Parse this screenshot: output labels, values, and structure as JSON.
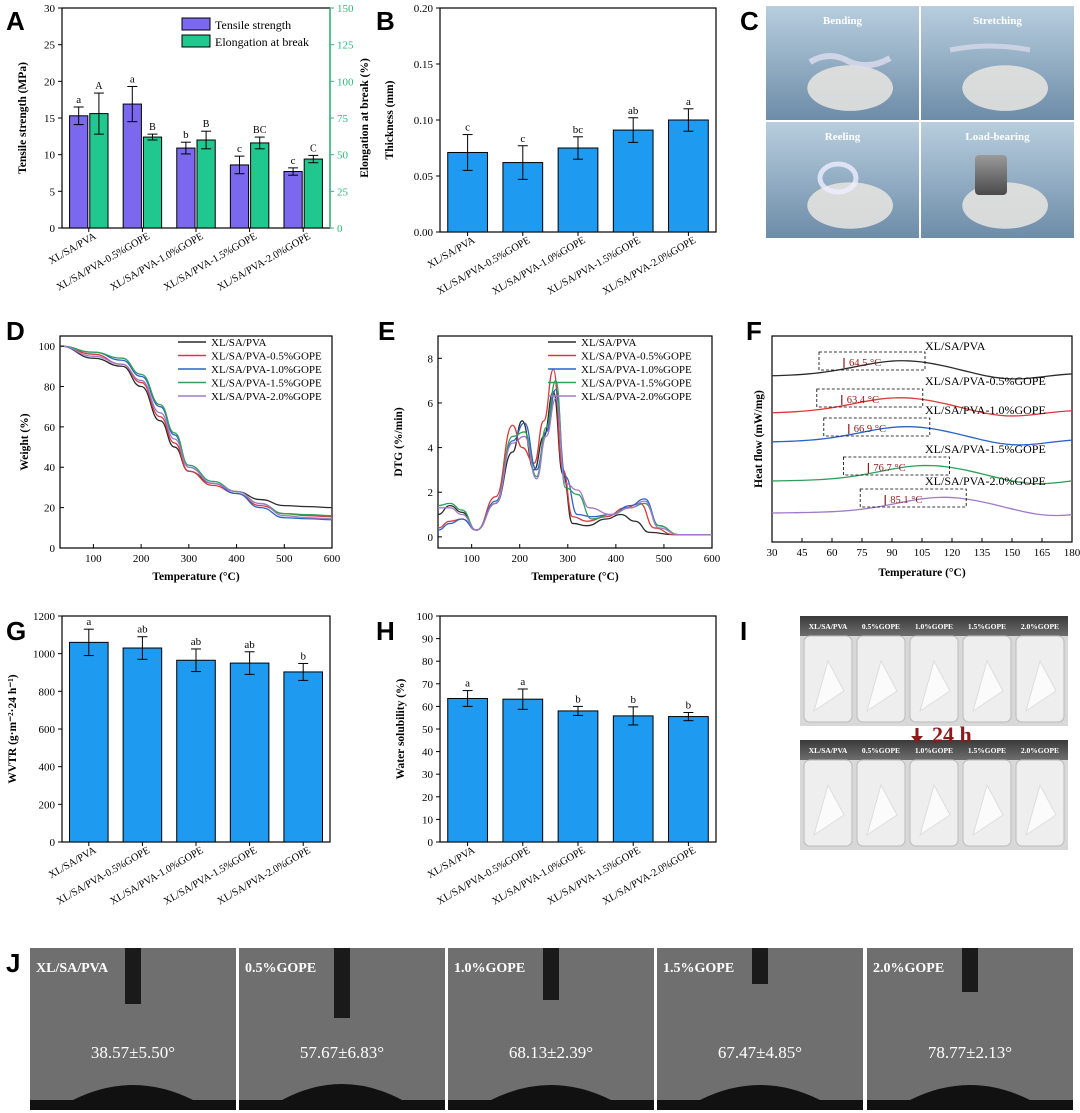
{
  "panels": {
    "A": "A",
    "B": "B",
    "C": "C",
    "D": "D",
    "E": "E",
    "F": "F",
    "G": "G",
    "H": "H",
    "I": "I",
    "J": "J"
  },
  "samples": [
    "XL/SA/PVA",
    "XL/SA/PVA-0.5%GOPE",
    "XL/SA/PVA-1.0%GOPE",
    "XL/SA/PVA-1.5%GOPE",
    "XL/SA/PVA-2.0%GOPE"
  ],
  "colors": {
    "blue_bar": "#1E9AF0",
    "purple_bar": "#7B68EE",
    "green_bar": "#20C890",
    "green_axis": "#2DB87A",
    "arrow": "#8B1A1A",
    "line_colors": [
      "#2B2B2B",
      "#D93A3A",
      "#2A62C9",
      "#2EA05A",
      "#A07AC8"
    ]
  },
  "chart_data": [
    {
      "panel": "A",
      "type": "bar",
      "ylabel": "Tensile strength (MPa)",
      "y2label": "Elongation at break (%)",
      "ylim": [
        0,
        30
      ],
      "y2lim": [
        0,
        150
      ],
      "yticks": [
        "0",
        "5",
        "10",
        "15",
        "20",
        "25",
        "30"
      ],
      "y2ticks": [
        "0",
        "25",
        "50",
        "75",
        "100",
        "125",
        "150"
      ],
      "legend": [
        "Tensile strength",
        "Elongation at break"
      ],
      "series": [
        {
          "name": "Tensile strength",
          "values": [
            15.3,
            16.9,
            10.9,
            8.6,
            7.7
          ],
          "err": [
            1.2,
            2.4,
            0.8,
            1.2,
            0.5
          ],
          "letters": [
            "a",
            "a",
            "b",
            "c",
            "c"
          ]
        },
        {
          "name": "Elongation at break",
          "values": [
            78,
            62,
            60,
            58,
            47
          ],
          "err": [
            14,
            2,
            6,
            4,
            2.5
          ],
          "letters": [
            "A",
            "B",
            "B",
            "BC",
            "C"
          ]
        }
      ]
    },
    {
      "panel": "B",
      "type": "bar",
      "ylabel": "Thickness (mm)",
      "ylim": [
        0,
        0.2
      ],
      "yticks": [
        "0.00",
        "0.05",
        "0.10",
        "0.15",
        "0.20"
      ],
      "values": [
        0.071,
        0.062,
        0.075,
        0.091,
        0.1
      ],
      "err": [
        0.016,
        0.015,
        0.01,
        0.011,
        0.01
      ],
      "letters": [
        "c",
        "c",
        "bc",
        "ab",
        "a"
      ]
    },
    {
      "panel": "D",
      "type": "line",
      "xlabel": "Temperature (°C)",
      "ylabel": "Weight (%)",
      "xlim": [
        30,
        600
      ],
      "ylim": [
        0,
        105
      ],
      "xticks": [
        "100",
        "200",
        "300",
        "400",
        "500",
        "600"
      ],
      "yticks": [
        "0",
        "20",
        "40",
        "60",
        "80",
        "100"
      ],
      "series": [
        {
          "name": "XL/SA/PVA",
          "x": [
            30,
            100,
            160,
            200,
            240,
            270,
            300,
            350,
            400,
            450,
            500,
            550,
            600
          ],
          "y": [
            100,
            94,
            90,
            80,
            63,
            50,
            38,
            32,
            28,
            24,
            21,
            20.5,
            20
          ]
        },
        {
          "name": "XL/SA/PVA-0.5%GOPE",
          "x": [
            30,
            100,
            160,
            200,
            240,
            270,
            300,
            350,
            400,
            450,
            500,
            550,
            600
          ],
          "y": [
            100,
            96,
            91,
            82,
            65,
            52,
            38,
            31,
            27,
            21,
            17,
            16,
            15.5
          ]
        },
        {
          "name": "XL/SA/PVA-1.0%GOPE",
          "x": [
            30,
            100,
            160,
            200,
            240,
            270,
            300,
            350,
            400,
            450,
            500,
            550,
            600
          ],
          "y": [
            100,
            97,
            93,
            85,
            70,
            56,
            40,
            32,
            27,
            20,
            15,
            14.5,
            14
          ]
        },
        {
          "name": "XL/SA/PVA-1.5%GOPE",
          "x": [
            30,
            100,
            160,
            200,
            240,
            270,
            300,
            350,
            400,
            450,
            500,
            550,
            600
          ],
          "y": [
            100,
            97,
            94,
            86,
            71,
            57,
            41,
            33,
            28,
            22,
            17,
            16.5,
            16
          ]
        },
        {
          "name": "XL/SA/PVA-2.0%GOPE",
          "x": [
            30,
            100,
            160,
            200,
            240,
            270,
            300,
            350,
            400,
            450,
            500,
            550,
            600
          ],
          "y": [
            100,
            95,
            91,
            83,
            67,
            54,
            40,
            32,
            28,
            22,
            16,
            15,
            14.5
          ]
        }
      ]
    },
    {
      "panel": "E",
      "type": "line",
      "xlabel": "Temperature (°C)",
      "ylabel": "DTG (%/min)",
      "xlim": [
        30,
        600
      ],
      "ylim": [
        -0.5,
        9
      ],
      "xticks": [
        "100",
        "200",
        "300",
        "400",
        "500",
        "600"
      ],
      "yticks": [
        "0",
        "2",
        "4",
        "6",
        "8"
      ],
      "series": [
        {
          "name": "XL/SA/PVA",
          "x": [
            30,
            55,
            80,
            110,
            150,
            185,
            205,
            230,
            250,
            270,
            290,
            310,
            340,
            380,
            410,
            440,
            470,
            520,
            600
          ],
          "y": [
            1.0,
            1.4,
            1.1,
            0.3,
            1.5,
            3.8,
            5.2,
            3.0,
            4.5,
            6.5,
            2.8,
            0.6,
            0.5,
            0.8,
            1.0,
            0.7,
            0.2,
            0.1,
            0.1
          ]
        },
        {
          "name": "XL/SA/PVA-0.5%GOPE",
          "x": [
            30,
            55,
            80,
            110,
            150,
            185,
            205,
            230,
            250,
            270,
            290,
            310,
            340,
            380,
            420,
            450,
            480,
            520,
            600
          ],
          "y": [
            0.4,
            0.7,
            0.8,
            0.3,
            1.8,
            5.0,
            4.0,
            3.3,
            5.2,
            7.5,
            3.0,
            0.9,
            0.7,
            0.9,
            1.3,
            1.5,
            0.4,
            0.1,
            0.1
          ]
        },
        {
          "name": "XL/SA/PVA-1.0%GOPE",
          "x": [
            30,
            55,
            80,
            110,
            150,
            185,
            210,
            235,
            255,
            275,
            295,
            320,
            350,
            390,
            430,
            460,
            490,
            530,
            600
          ],
          "y": [
            0.3,
            0.6,
            0.8,
            0.3,
            1.6,
            4.3,
            5.1,
            3.0,
            4.7,
            6.6,
            2.7,
            1.0,
            0.9,
            1.0,
            1.4,
            1.7,
            0.5,
            0.1,
            0.1
          ]
        },
        {
          "name": "XL/SA/PVA-1.5%GOPE",
          "x": [
            30,
            55,
            80,
            110,
            150,
            185,
            210,
            235,
            255,
            275,
            295,
            320,
            350,
            390,
            430,
            460,
            490,
            530,
            600
          ],
          "y": [
            1.4,
            1.5,
            1.2,
            0.3,
            1.5,
            4.5,
            4.7,
            2.7,
            4.9,
            7.0,
            2.2,
            1.9,
            0.8,
            1.0,
            1.3,
            1.5,
            0.5,
            0.1,
            0.1
          ]
        },
        {
          "name": "XL/SA/PVA-2.0%GOPE",
          "x": [
            30,
            55,
            80,
            110,
            150,
            185,
            210,
            235,
            255,
            275,
            295,
            320,
            345,
            390,
            430,
            460,
            490,
            530,
            600
          ],
          "y": [
            1.3,
            1.3,
            1.0,
            0.3,
            1.5,
            4.2,
            4.5,
            2.6,
            4.5,
            6.2,
            2.4,
            2.1,
            1.3,
            1.0,
            1.3,
            1.6,
            0.4,
            0.1,
            0.1
          ]
        }
      ]
    },
    {
      "panel": "F",
      "type": "line",
      "xlabel": "Temperature (°C)",
      "ylabel": "Heat flow (mW/mg)",
      "xlim": [
        30,
        180
      ],
      "xticks": [
        "30",
        "45",
        "60",
        "75",
        "90",
        "105",
        "120",
        "135",
        "150",
        "165",
        "180"
      ],
      "annotations": [
        "64.5 °C",
        "63.4 °C",
        "66.9 °C",
        "76.7 °C",
        "85.1 °C"
      ],
      "series": [
        {
          "name": "XL/SA/PVA",
          "tg": 64.5
        },
        {
          "name": "XL/SA/PVA-0.5%GOPE",
          "tg": 63.4
        },
        {
          "name": "XL/SA/PVA-1.0%GOPE",
          "tg": 66.9
        },
        {
          "name": "XL/SA/PVA-1.5%GOPE",
          "tg": 76.7
        },
        {
          "name": "XL/SA/PVA-2.0%GOPE",
          "tg": 85.1
        }
      ]
    },
    {
      "panel": "G",
      "type": "bar",
      "ylabel": "WVTR (g·m⁻²·24 h⁻¹)",
      "ylim": [
        0,
        1200
      ],
      "yticks": [
        "0",
        "200",
        "400",
        "600",
        "800",
        "1000",
        "1200"
      ],
      "values": [
        1060,
        1030,
        965,
        950,
        903
      ],
      "err": [
        70,
        60,
        60,
        60,
        45
      ],
      "letters": [
        "a",
        "ab",
        "ab",
        "ab",
        "b"
      ]
    },
    {
      "panel": "H",
      "type": "bar",
      "ylabel": "Water solubility (%)",
      "ylim": [
        0,
        100
      ],
      "yticks": [
        "0",
        "10",
        "20",
        "30",
        "40",
        "50",
        "60",
        "70",
        "80",
        "90",
        "100"
      ],
      "values": [
        63.5,
        63.2,
        58,
        55.8,
        55.5
      ],
      "err": [
        3.5,
        4.5,
        2,
        4,
        1.8
      ],
      "letters": [
        "a",
        "a",
        "b",
        "b",
        "b"
      ]
    }
  ],
  "photos_C": {
    "labels": [
      "Bending",
      "Stretching",
      "Reeling",
      "Load-bearing"
    ]
  },
  "photos_I": {
    "vial_labels": [
      "XL/SA/PVA",
      "0.5%GOPE",
      "1.0%GOPE",
      "1.5%GOPE",
      "2.0%GOPE"
    ],
    "time_label": "24 h"
  },
  "photos_J": {
    "labels": [
      "XL/SA/PVA",
      "0.5%GOPE",
      "1.0%GOPE",
      "1.5%GOPE",
      "2.0%GOPE"
    ],
    "angles": [
      "38.57±5.50°",
      "57.67±6.83°",
      "68.13±2.39°",
      "67.47±4.85°",
      "78.77±2.13°"
    ]
  }
}
